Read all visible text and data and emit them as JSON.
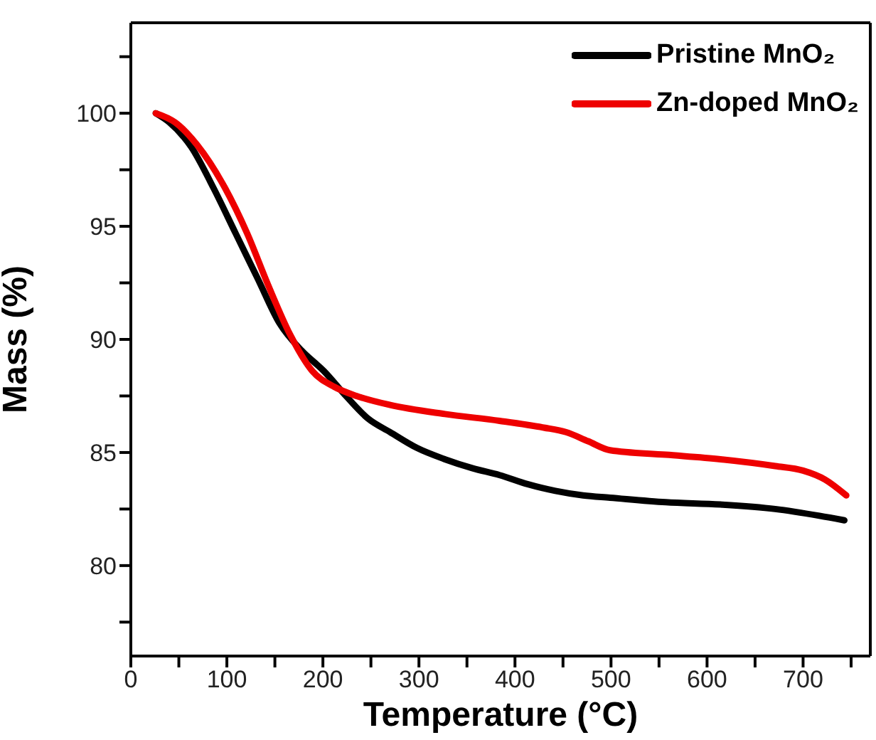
{
  "chart_data": {
    "type": "line",
    "xlabel": "Temperature (°C)",
    "ylabel": "Mass (%)",
    "xlim": [
      0,
      770
    ],
    "ylim": [
      76,
      104
    ],
    "xticks": [
      0,
      {
        "value": 50,
        "label": null
      },
      100,
      {
        "value": 150,
        "label": null
      },
      200,
      {
        "value": 250,
        "label": null
      },
      300,
      {
        "value": 350,
        "label": null
      },
      400,
      {
        "value": 450,
        "label": null
      },
      500,
      {
        "value": 550,
        "label": null
      },
      600,
      {
        "value": 650,
        "label": null
      },
      700,
      {
        "value": 750,
        "label": null
      }
    ],
    "yticks": [
      {
        "value": 77.5,
        "label": null
      },
      80,
      {
        "value": 82.5,
        "label": null
      },
      85,
      {
        "value": 87.5,
        "label": null
      },
      90,
      {
        "value": 92.5,
        "label": null
      },
      95,
      {
        "value": 97.5,
        "label": null
      },
      100,
      {
        "value": 102.5,
        "label": null
      }
    ],
    "legend": "top right",
    "grid": false,
    "series": [
      {
        "name": "Pristine MnO₂",
        "color": "#000000",
        "x": [
          26,
          40,
          63,
          86,
          109,
          132,
          155,
          178,
          201,
          224,
          247,
          270,
          298,
          327,
          356,
          384,
          413,
          442,
          471,
          499,
          557,
          614,
          671,
          717,
          743
        ],
        "values": [
          100,
          99.6,
          98.5,
          96.7,
          94.7,
          92.7,
          90.7,
          89.5,
          88.6,
          87.5,
          86.5,
          85.9,
          85.2,
          84.7,
          84.3,
          84.0,
          83.6,
          83.3,
          83.1,
          83.0,
          82.8,
          82.7,
          82.5,
          82.2,
          82.0
        ]
      },
      {
        "name": "Zn-doped MnO₂",
        "color": "#ee0000",
        "x": [
          26,
          46,
          69,
          98,
          121,
          143,
          166,
          189,
          212,
          235,
          270,
          327,
          384,
          430,
          453,
          476,
          499,
          557,
          614,
          671,
          700,
          723,
          745
        ],
        "values": [
          100,
          99.6,
          98.6,
          96.7,
          94.7,
          92.4,
          90.2,
          88.6,
          87.9,
          87.5,
          87.1,
          86.7,
          86.4,
          86.1,
          85.9,
          85.5,
          85.1,
          84.9,
          84.7,
          84.4,
          84.2,
          83.8,
          83.1
        ]
      }
    ]
  }
}
